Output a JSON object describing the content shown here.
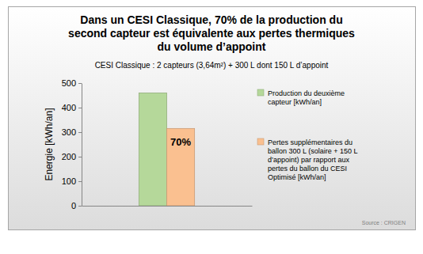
{
  "chart_data": {
    "type": "bar",
    "title": "Dans un CESI Classique, 70% de la production du second capteur est équivalente aux pertes thermiques du volume d’appoint",
    "subtitle": "CESI Classique : 2 capteurs (3,64m²) + 300 L dont 150 L d’appoint",
    "y_label": "Energie [kWh/an]",
    "categories": [
      null
    ],
    "series": [
      {
        "name": "Production du deuxième capteur [kWh/an]",
        "color": "#b5d89a",
        "values": [
          460
        ]
      },
      {
        "name": "Pertes supplémentaires du ballon 300 L (solaire + 150 L d’appoint) par rapport aux pertes du ballon du CESI Optimisé [kWh/an]",
        "color": "#fac090",
        "values": [
          315
        ]
      }
    ],
    "annotation": "70%",
    "source": "Source : CRIGEN",
    "ylim": [
      0,
      500
    ],
    "yticks": [
      0,
      100,
      200,
      300,
      400,
      500
    ],
    "grid": false,
    "legend": "right"
  }
}
